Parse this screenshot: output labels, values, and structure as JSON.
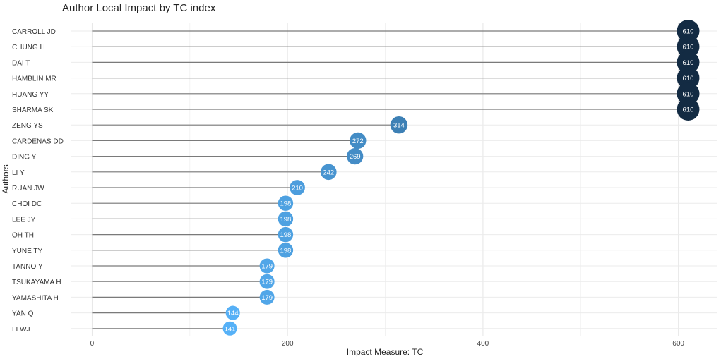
{
  "chart_data": {
    "type": "scatter",
    "title": "Author Local Impact by TC index",
    "xlabel": "Impact Measure: TC",
    "ylabel": "Authors",
    "xlim": [
      -22,
      640
    ],
    "xticks": [
      0,
      200,
      400,
      600
    ],
    "grid": true,
    "legend": "none",
    "categories": [
      "CARROLL JD",
      "CHUNG H",
      "DAI T",
      "HAMBLIN MR",
      "HUANG YY",
      "SHARMA SK",
      "ZENG YS",
      "CARDENAS DD",
      "DING Y",
      "LI Y",
      "RUAN JW",
      "CHOI DC",
      "LEE JY",
      "OH TH",
      "YUNE TY",
      "TANNO Y",
      "TSUKAYAMA H",
      "YAMASHITA H",
      "YAN Q",
      "LI WJ"
    ],
    "values": [
      610,
      610,
      610,
      610,
      610,
      610,
      314,
      272,
      269,
      242,
      210,
      198,
      198,
      198,
      198,
      179,
      179,
      179,
      144,
      141
    ],
    "color_scale": {
      "low": "#56b1f7",
      "high": "#132b43"
    }
  }
}
